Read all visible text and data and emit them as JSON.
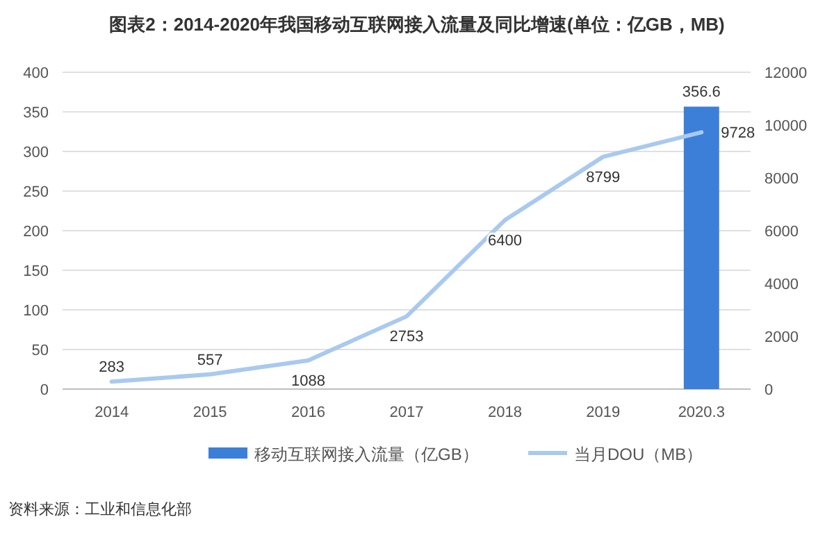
{
  "chart_data": {
    "type": "bar",
    "title": "图表2：2014-2020年我国移动互联网接入流量及同比增速(单位：亿GB，MB)",
    "categories": [
      "2014",
      "2015",
      "2016",
      "2017",
      "2018",
      "2019",
      "2020.3"
    ],
    "series": [
      {
        "name": "移动互联网接入流量（亿GB）",
        "color": "#3c7fd9",
        "values": [
          null,
          null,
          null,
          null,
          null,
          null,
          356.6
        ]
      },
      {
        "name": "当月DOU（MB）",
        "type": "line",
        "axis": "y2",
        "color": "#a9c9ef",
        "values": [
          283,
          557,
          1088,
          2753,
          6400,
          8799,
          9728
        ]
      }
    ],
    "ylim": [
      0,
      400
    ],
    "yticks": [
      0,
      50,
      100,
      150,
      200,
      250,
      300,
      350,
      400
    ],
    "y2lim": [
      0,
      12000
    ],
    "y2ticks": [
      0,
      2000,
      4000,
      6000,
      8000,
      10000,
      12000
    ],
    "data_labels": true,
    "grid": "y",
    "legend": "bottom",
    "marker": "none",
    "line_style": "solid",
    "annotations": [
      "资料来源：工业和信息化部"
    ]
  }
}
